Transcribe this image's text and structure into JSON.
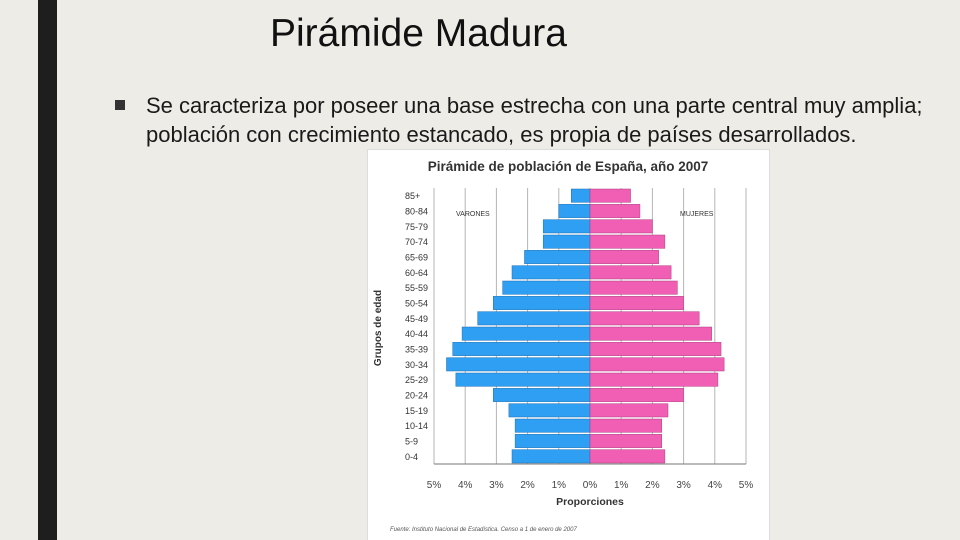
{
  "slide": {
    "title": "Pirámide Madura",
    "bullet_text": "Se caracteriza por poseer una base estrecha con una parte central muy amplia; población con crecimiento estancado, es propia de países desarrollados."
  },
  "colors": {
    "background": "#eeece7",
    "left_bar": "#1e1e1e",
    "male": "#2e9ff2",
    "female": "#f05fb3"
  },
  "chart_data": {
    "type": "bar",
    "title": "Pirámide de población de España, año 2007",
    "xlabel": "Proporciones",
    "ylabel": "Grupos de edad",
    "source": "Fuente: Instituto Nacional de Estadística. Censo a 1 de enero de 2007",
    "xlim": [
      -5,
      5
    ],
    "x_ticks": [
      "5%",
      "4%",
      "3%",
      "2%",
      "1%",
      "0%",
      "1%",
      "2%",
      "3%",
      "4%",
      "5%"
    ],
    "categories": [
      "0-4",
      "5-9",
      "10-14",
      "15-19",
      "20-24",
      "25-29",
      "30-34",
      "35-39",
      "40-44",
      "45-49",
      "50-54",
      "55-59",
      "60-64",
      "65-69",
      "70-74",
      "75-79",
      "80-84",
      "85+"
    ],
    "series": [
      {
        "name": "VARONES",
        "values": [
          2.5,
          2.4,
          2.4,
          2.6,
          3.1,
          4.3,
          4.6,
          4.4,
          4.1,
          3.6,
          3.1,
          2.8,
          2.5,
          2.1,
          1.5,
          1.5,
          1.0,
          0.6
        ]
      },
      {
        "name": "MUJERES",
        "values": [
          2.4,
          2.3,
          2.3,
          2.5,
          3.0,
          4.1,
          4.3,
          4.2,
          3.9,
          3.5,
          3.0,
          2.8,
          2.6,
          2.2,
          2.4,
          2.0,
          1.6,
          1.3
        ]
      }
    ]
  }
}
